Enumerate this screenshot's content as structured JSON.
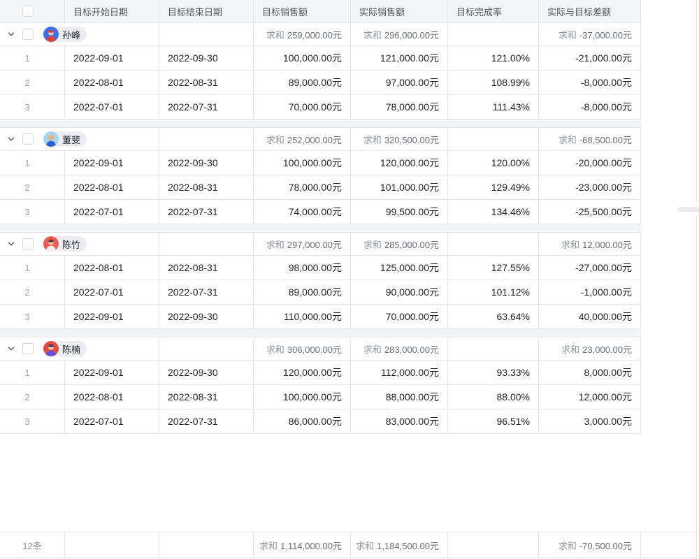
{
  "sum_label": "求和",
  "columns": [
    {
      "key": "start",
      "label": "目标开始日期"
    },
    {
      "key": "end",
      "label": "目标结束日期"
    },
    {
      "key": "target",
      "label": "目标销售额"
    },
    {
      "key": "actual",
      "label": "实际销售额"
    },
    {
      "key": "rate",
      "label": "目标完成率"
    },
    {
      "key": "diff",
      "label": "实际与目标差额"
    }
  ],
  "icons": {
    "group_toggle": "chevron-down-icon",
    "person": "person-avatar-icon"
  },
  "groups": [
    {
      "name": "孙峰",
      "avatar": {
        "bg": "#3a6ff2",
        "hair": "#cf4237",
        "skin": "#f5c9a6",
        "shirt": "#d8453a"
      },
      "sums": {
        "target": "259,000.00元",
        "actual": "296,000.00元",
        "diff": "-37,000.00元"
      },
      "rows": [
        {
          "num": "1",
          "start": "2022-09-01",
          "end": "2022-09-30",
          "target": "100,000.00元",
          "actual": "121,000.00元",
          "rate": "121.00%",
          "diff": "-21,000.00元"
        },
        {
          "num": "2",
          "start": "2022-08-01",
          "end": "2022-08-31",
          "target": "89,000.00元",
          "actual": "97,000.00元",
          "rate": "108.99%",
          "diff": "-8,000.00元"
        },
        {
          "num": "3",
          "start": "2022-07-01",
          "end": "2022-07-31",
          "target": "70,000.00元",
          "actual": "78,000.00元",
          "rate": "111.43%",
          "diff": "-8,000.00元"
        }
      ]
    },
    {
      "name": "董斐",
      "avatar": {
        "bg": "#a4d6f7",
        "hair": "#eab57e",
        "skin": "#eab57e",
        "shirt": "#2d5fd0"
      },
      "sums": {
        "target": "252,000.00元",
        "actual": "320,500.00元",
        "diff": "-68,500.00元"
      },
      "rows": [
        {
          "num": "1",
          "start": "2022-09-01",
          "end": "2022-09-30",
          "target": "100,000.00元",
          "actual": "120,000.00元",
          "rate": "120.00%",
          "diff": "-20,000.00元"
        },
        {
          "num": "2",
          "start": "2022-08-01",
          "end": "2022-08-31",
          "target": "78,000.00元",
          "actual": "101,000.00元",
          "rate": "129.49%",
          "diff": "-23,000.00元"
        },
        {
          "num": "3",
          "start": "2022-07-01",
          "end": "2022-07-31",
          "target": "74,000.00元",
          "actual": "99,500.00元",
          "rate": "134.46%",
          "diff": "-25,500.00元"
        }
      ]
    },
    {
      "name": "陈竹",
      "avatar": {
        "bg": "#f25a4f",
        "hair": "#4d383b",
        "skin": "#f5c9a6",
        "shirt": "#f7f3ec"
      },
      "sums": {
        "target": "297,000.00元",
        "actual": "285,000.00元",
        "diff": "12,000.00元"
      },
      "rows": [
        {
          "num": "1",
          "start": "2022-08-01",
          "end": "2022-08-31",
          "target": "98,000.00元",
          "actual": "125,000.00元",
          "rate": "127.55%",
          "diff": "-27,000.00元"
        },
        {
          "num": "2",
          "start": "2022-07-01",
          "end": "2022-07-31",
          "target": "89,000.00元",
          "actual": "90,000.00元",
          "rate": "101.12%",
          "diff": "-1,000.00元"
        },
        {
          "num": "3",
          "start": "2022-09-01",
          "end": "2022-09-30",
          "target": "110,000.00元",
          "actual": "70,000.00元",
          "rate": "63.64%",
          "diff": "40,000.00元"
        }
      ]
    },
    {
      "name": "陈楠",
      "avatar": {
        "bg": "#e84a3f",
        "hair": "#433a56",
        "skin": "#f5c9a6",
        "shirt": "#6052e2"
      },
      "sums": {
        "target": "306,000.00元",
        "actual": "283,000.00元",
        "diff": "23,000.00元"
      },
      "rows": [
        {
          "num": "1",
          "start": "2022-09-01",
          "end": "2022-09-30",
          "target": "120,000.00元",
          "actual": "112,000.00元",
          "rate": "93.33%",
          "diff": "8,000.00元"
        },
        {
          "num": "2",
          "start": "2022-08-01",
          "end": "2022-08-31",
          "target": "100,000.00元",
          "actual": "88,000.00元",
          "rate": "88.00%",
          "diff": "12,000.00元"
        },
        {
          "num": "3",
          "start": "2022-07-01",
          "end": "2022-07-31",
          "target": "86,000.00元",
          "actual": "83,000.00元",
          "rate": "96.51%",
          "diff": "3,000.00元"
        }
      ]
    }
  ],
  "footer": {
    "count": "12条",
    "sums": {
      "target": "1,114,000.00元",
      "actual": "1,184,500.00元",
      "diff": "-70,500.00元"
    }
  }
}
